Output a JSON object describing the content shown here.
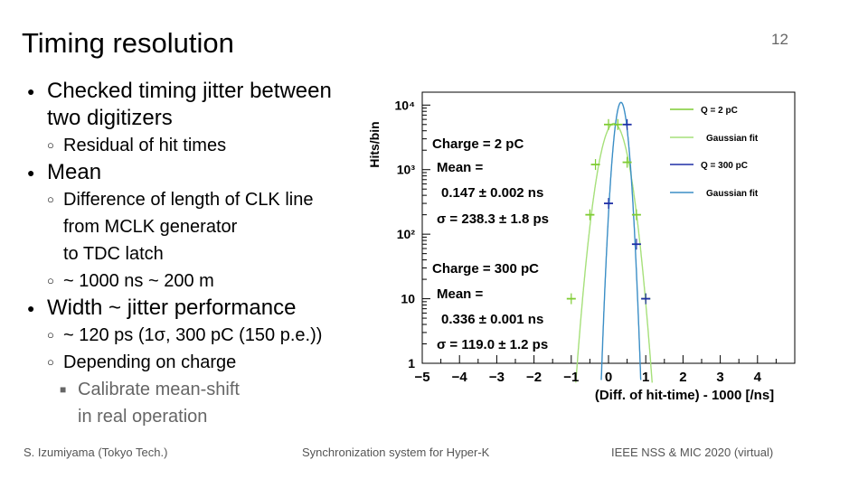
{
  "slide": {
    "title": "Timing resolution",
    "page_number": "12",
    "bullets": [
      {
        "level": 1,
        "lines": [
          "Checked timing jitter between",
          "two digitizers"
        ]
      },
      {
        "level": 2,
        "lines": [
          "Residual of hit times"
        ]
      },
      {
        "level": 1,
        "lines": [
          "Mean"
        ]
      },
      {
        "level": 2,
        "lines": [
          "Difference of length of CLK line",
          "from MCLK generator",
          "to TDC latch"
        ]
      },
      {
        "level": 2,
        "lines": [
          "~ 1000 ns ~ 200 m"
        ]
      },
      {
        "level": 1,
        "lines": [
          "Width ~ jitter performance"
        ]
      },
      {
        "level": 2,
        "lines": [
          "~ 120 ps (1σ, 300 pC (150 p.e.))"
        ]
      },
      {
        "level": 2,
        "lines": [
          "Depending on charge"
        ]
      },
      {
        "level": 3,
        "lines": [
          "Calibrate mean-shift",
          "in real operation"
        ]
      }
    ],
    "markers": {
      "level1": "●",
      "level2": "○",
      "level3": "■"
    },
    "footer": {
      "left": "S. Izumiyama (Tokyo Tech.)",
      "center": "Synchronization system for Hyper-K",
      "right": "IEEE NSS & MIC 2020 (virtual)"
    }
  },
  "chart_data": {
    "type": "line",
    "xlabel": "(Diff. of hit-time) - 1000 [/ns]",
    "ylabel": "Hits/bin",
    "xlim": [
      -5,
      5
    ],
    "ylim_log10": [
      0,
      4.2
    ],
    "y_scale": "log",
    "x_ticks": [
      "−5",
      "−4",
      "−3",
      "−2",
      "−1",
      "0",
      "1",
      "2",
      "3",
      "4"
    ],
    "y_ticks": [
      "1",
      "10",
      "10²",
      "10³",
      "10⁴"
    ],
    "legend_position": "top-right",
    "colors": {
      "q2": "#7fcc33",
      "q2_fit": "#a6e07a",
      "q300": "#1f2fa6",
      "q300_fit": "#3b8ec6"
    },
    "series": [
      {
        "name": "Q = 2 pC",
        "kind": "points",
        "x": [
          -1.0,
          -0.5,
          -0.35,
          0.0,
          0.25,
          0.5,
          0.75,
          1.0
        ],
        "y": [
          10,
          200,
          1200,
          5000,
          5000,
          1300,
          200,
          10
        ]
      },
      {
        "name": "Gaussian fit",
        "kind": "fit",
        "mean": 0.147,
        "sigma": 0.2383,
        "peak": 5200
      },
      {
        "name": "Q = 300 pC",
        "kind": "points",
        "x": [
          0.0,
          0.5,
          0.75,
          1.0
        ],
        "y": [
          300,
          5000,
          70,
          10
        ]
      },
      {
        "name": "Gaussian fit",
        "kind": "fit",
        "mean": 0.336,
        "sigma": 0.119,
        "peak": 11000
      }
    ],
    "annotations": [
      {
        "id": "a2",
        "lines": [
          "Charge = 2 pC",
          "Mean =",
          "0.147  ± 0.002 ns",
          "σ = 238.3  ± 1.8 ps"
        ]
      },
      {
        "id": "a300",
        "lines": [
          "Charge = 300 pC",
          "Mean =",
          "0.336  ± 0.001 ns",
          "σ = 119.0  ± 1.2 ps"
        ]
      }
    ]
  }
}
